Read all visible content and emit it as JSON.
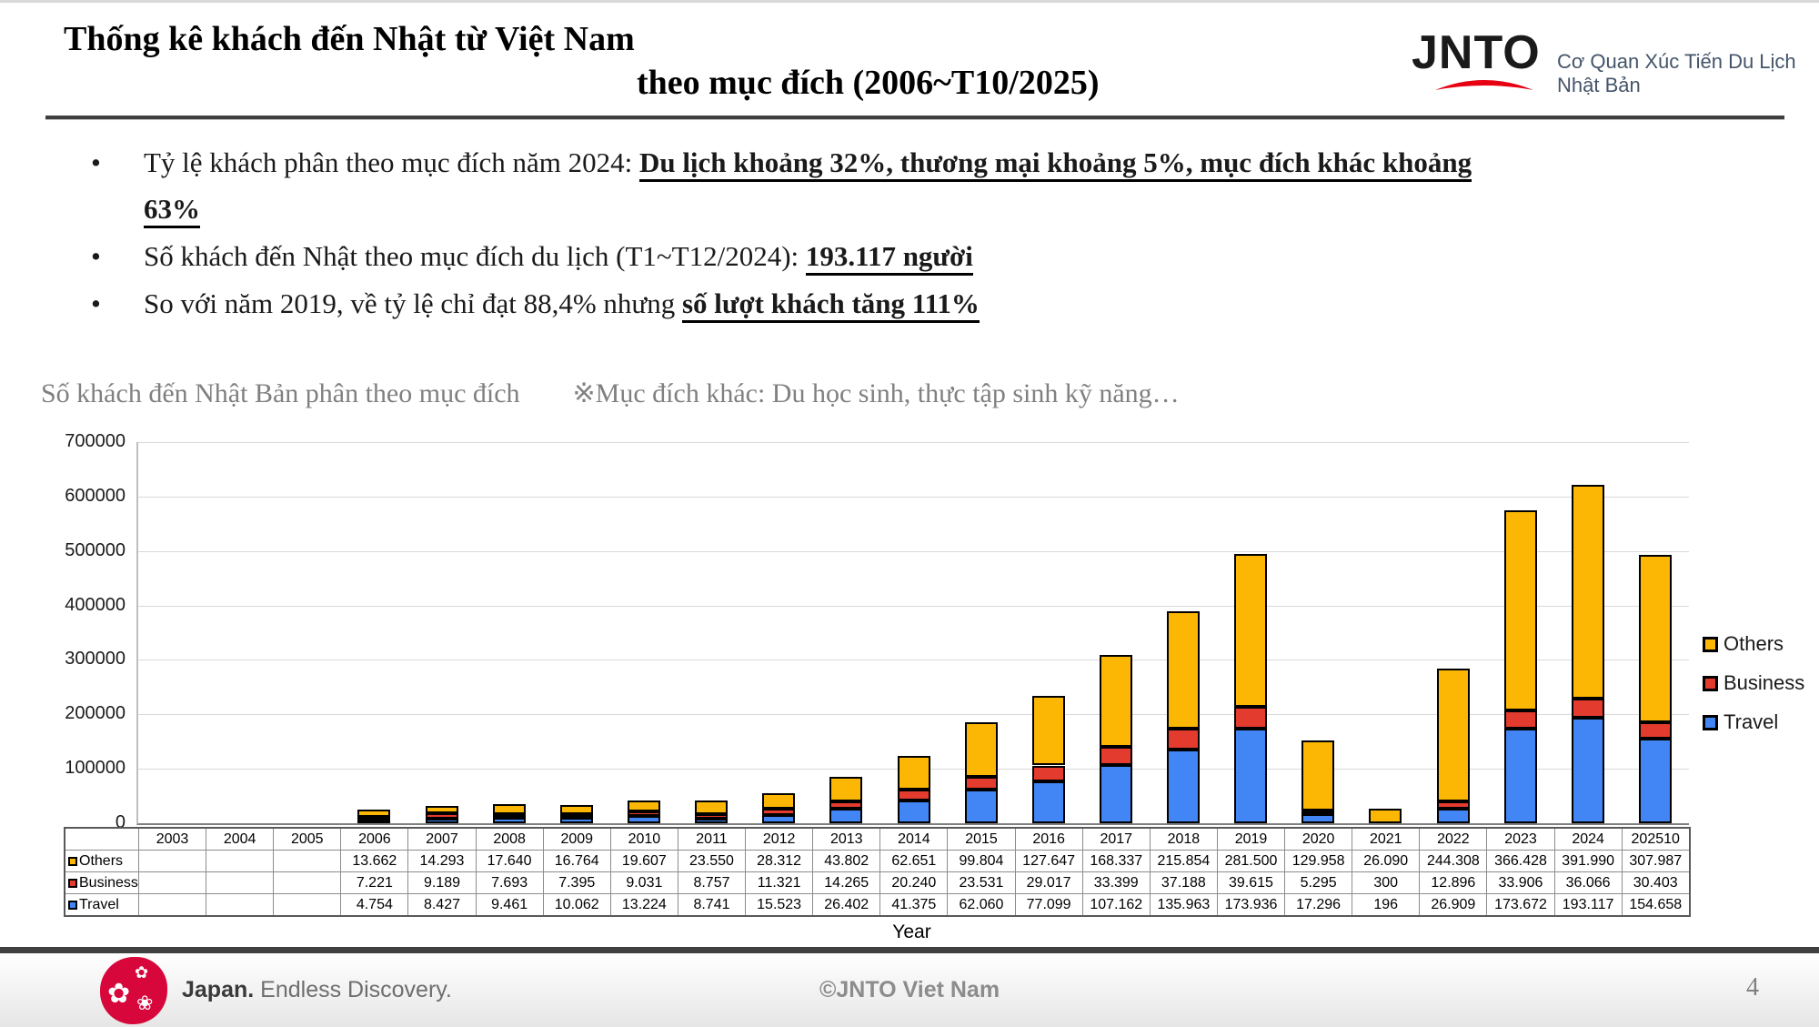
{
  "header": {
    "title_line1": "Thống kê khách đến Nhật từ Việt Nam",
    "title_line2": "theo mục đích (2006~T10/2025)",
    "logo_word": "JNTO",
    "logo_subtitle": "Cơ Quan Xúc Tiến Du Lịch Nhật Bản"
  },
  "bullets": [
    {
      "normal": "Tỷ lệ khách phân theo mục đích năm 2024: ",
      "emphasis": "Du lịch khoảng 32%, thương mại khoảng 5%, mục đích khác khoảng 63%"
    },
    {
      "normal": "Số khách đến Nhật theo mục đích du lịch (T1~T12/2024): ",
      "emphasis": "193.117 người"
    },
    {
      "normal": "So với năm 2019, về tỷ lệ chỉ đạt 88,4% nhưng ",
      "emphasis": "số lượt khách tăng 111%"
    }
  ],
  "chart_caption": {
    "left": "Số khách đến Nhật Bản phân theo mục đích",
    "right": "※Mục đích khác: Du học sinh, thực tập sinh kỹ năng…"
  },
  "chart_data": {
    "type": "bar",
    "stacked": true,
    "title": "Số khách đến Nhật Bản phân theo mục đích",
    "xlabel": "Year",
    "ylabel": "",
    "ylim": [
      0,
      700000
    ],
    "ytick_step": 100000,
    "grid": true,
    "legend_position": "right",
    "legend_order": [
      "Others",
      "Business",
      "Travel"
    ],
    "categories": [
      "2003",
      "2004",
      "2005",
      "2006",
      "2007",
      "2008",
      "2009",
      "2010",
      "2011",
      "2012",
      "2013",
      "2014",
      "2015",
      "2016",
      "2017",
      "2018",
      "2019",
      "2020",
      "2021",
      "2022",
      "2023",
      "2024",
      "202510"
    ],
    "series": [
      {
        "name": "Travel",
        "color": "#4285F4",
        "values": [
          null,
          null,
          null,
          4754,
          8427,
          9461,
          10062,
          13224,
          8741,
          15523,
          26402,
          41375,
          62060,
          77099,
          107162,
          135963,
          173936,
          17296,
          196,
          26909,
          173672,
          193117,
          154658
        ]
      },
      {
        "name": "Business",
        "color": "#E33B2E",
        "values": [
          null,
          null,
          null,
          7221,
          9189,
          7693,
          7395,
          9031,
          8757,
          11321,
          14265,
          20240,
          23531,
          29017,
          33399,
          37188,
          39615,
          5295,
          300,
          12896,
          33906,
          36066,
          30403
        ]
      },
      {
        "name": "Others",
        "color": "#FCB705",
        "values": [
          null,
          null,
          null,
          13662,
          14293,
          17640,
          16764,
          19607,
          23550,
          28312,
          43802,
          62651,
          99804,
          127647,
          168337,
          215854,
          281500,
          129958,
          26090,
          244308,
          366428,
          391990,
          307987
        ]
      }
    ]
  },
  "footer": {
    "brand_bold": "Japan.",
    "brand_regular": "Endless Discovery.",
    "center": "©JNTO Viet Nam",
    "page_number": "4"
  }
}
